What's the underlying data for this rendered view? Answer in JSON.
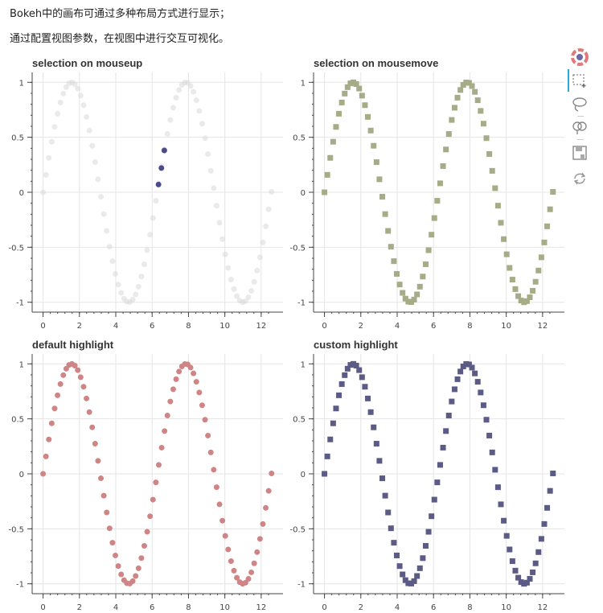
{
  "intro": {
    "line1": "Bokeh中的画布可通过多种布局方式进行显示；",
    "line2": "通过配置视图参数，在视图中进行交互可视化。"
  },
  "toolbar": {
    "tools": [
      "bokeh-logo-icon",
      "box-select-icon",
      "lasso-select-icon",
      "poly-select-icon",
      "save-icon",
      "reset-icon"
    ],
    "active": "box-select-icon"
  },
  "chart_data": [
    {
      "type": "scatter",
      "title": "selection on mouseup",
      "marker": "circle",
      "color": "#d9d9d9",
      "selected_color": "#4b4b8a",
      "selected_x": [
        6.35,
        6.51,
        6.67
      ],
      "selected_y": [
        0.07,
        0.22,
        0.38
      ],
      "x_function": "sin",
      "x_start": 0,
      "x_end": 12.57,
      "n_points": 80,
      "xlim": [
        -0.6,
        13.2
      ],
      "ylim": [
        -1.09,
        1.09
      ],
      "xticks": [
        "0",
        "2",
        "4",
        "6",
        "8",
        "10",
        "12"
      ],
      "yticks": [
        "-1",
        "-0.5",
        "0",
        "0.5",
        "1"
      ],
      "grid": true
    },
    {
      "type": "scatter",
      "title": "selection on mousemove",
      "marker": "square",
      "color": "#a6ac87",
      "x_function": "sin",
      "x_start": 0,
      "x_end": 12.57,
      "n_points": 80,
      "xlim": [
        -0.6,
        13.2
      ],
      "ylim": [
        -1.09,
        1.09
      ],
      "xticks": [
        "0",
        "2",
        "4",
        "6",
        "8",
        "10",
        "12"
      ],
      "yticks": [
        "-1",
        "-0.5",
        "0",
        "0.5",
        "1"
      ],
      "grid": true
    },
    {
      "type": "scatter",
      "title": "default highlight",
      "marker": "circle",
      "color": "#cf8585",
      "x_function": "sin",
      "x_start": 0,
      "x_end": 12.57,
      "n_points": 80,
      "xlim": [
        -0.6,
        13.2
      ],
      "ylim": [
        -1.09,
        1.09
      ],
      "xticks": [
        "0",
        "2",
        "4",
        "6",
        "8",
        "10",
        "12"
      ],
      "yticks": [
        "-1",
        "-0.5",
        "0",
        "0.5",
        "1"
      ],
      "grid": true
    },
    {
      "type": "scatter",
      "title": "custom highlight",
      "marker": "square",
      "color": "#5b5b86",
      "x_function": "sin",
      "x_start": 0,
      "x_end": 12.57,
      "n_points": 80,
      "xlim": [
        -0.6,
        13.2
      ],
      "ylim": [
        -1.09,
        1.09
      ],
      "xticks": [
        "0",
        "2",
        "4",
        "6",
        "8",
        "10",
        "12"
      ],
      "yticks": [
        "-1",
        "-0.5",
        "0",
        "0.5",
        "1"
      ],
      "grid": true
    }
  ]
}
